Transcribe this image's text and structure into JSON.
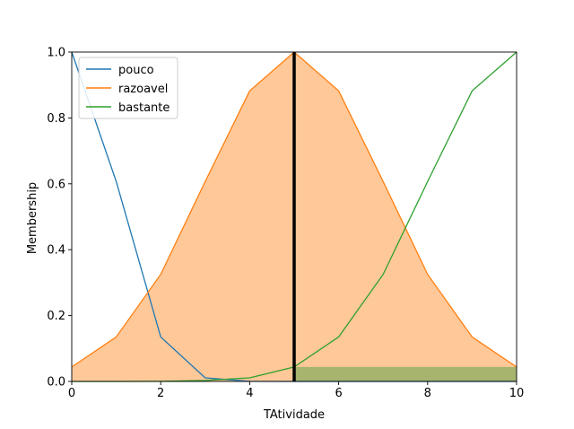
{
  "chart_data": {
    "type": "line",
    "title": "",
    "xlabel": "TAtividade",
    "ylabel": "Membership",
    "xlim": [
      0,
      10
    ],
    "ylim": [
      0,
      1
    ],
    "xticks": [
      0,
      2,
      4,
      6,
      8,
      10
    ],
    "yticks": [
      0.0,
      0.2,
      0.4,
      0.6,
      0.8,
      1.0
    ],
    "ytick_labels": [
      "0.0",
      "0.2",
      "0.4",
      "0.6",
      "0.8",
      "1.0"
    ],
    "legend_position": "top-left",
    "x": [
      0,
      1,
      2,
      3,
      4,
      5,
      6,
      7,
      8,
      9,
      10
    ],
    "series": [
      {
        "name": "pouco",
        "color": "#1f77b4",
        "values": [
          1.0,
          0.607,
          0.135,
          0.011,
          0.0003,
          0.0,
          0.0,
          0.0,
          0.0,
          0.0,
          0.0
        ]
      },
      {
        "name": "razoavel",
        "color": "#ff7f0e",
        "values": [
          0.044,
          0.135,
          0.325,
          0.607,
          0.882,
          1.0,
          0.882,
          0.607,
          0.325,
          0.135,
          0.044
        ]
      },
      {
        "name": "bastante",
        "color": "#2ca02c",
        "values": [
          0.0,
          0.0,
          0.0003,
          0.003,
          0.011,
          0.044,
          0.135,
          0.325,
          0.607,
          0.882,
          1.0
        ]
      }
    ],
    "fill": {
      "series": "razoavel",
      "color": "#ffc899"
    },
    "activation": {
      "x_start": 5,
      "x_end": 10,
      "level": 0.044,
      "color": "#a6b46e"
    },
    "crisp_value": {
      "x": 5,
      "color": "#000000"
    }
  }
}
